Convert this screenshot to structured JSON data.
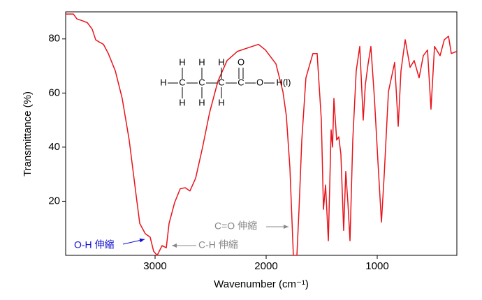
{
  "chart_data": {
    "type": "line",
    "xlabel": "Wavenumber (cm⁻¹)",
    "ylabel": "Transmittance (%)",
    "x": [
      3805,
      3736,
      3704,
      3654,
      3610,
      3566,
      3535,
      3509,
      3465,
      3421,
      3358,
      3296,
      3233,
      3170,
      3138,
      3088,
      3044,
      3013,
      2981,
      2937,
      2899,
      2874,
      2824,
      2774,
      2730,
      2686,
      2635,
      2572,
      2509,
      2434,
      2352,
      2258,
      2164,
      2069,
      2006,
      1912,
      1849,
      1818,
      1786,
      1755,
      1723,
      1704,
      1679,
      1642,
      1579,
      1541,
      1503,
      1484,
      1465,
      1440,
      1415,
      1402,
      1390,
      1365,
      1346,
      1327,
      1302,
      1283,
      1264,
      1245,
      1220,
      1189,
      1157,
      1126,
      1107,
      1082,
      1057,
      1025,
      994,
      962,
      937,
      899,
      843,
      811,
      786,
      748,
      704,
      667,
      623,
      585,
      547,
      516,
      484,
      434,
      396,
      358,
      333,
      283
    ],
    "series": [
      {
        "color": "#e8141b",
        "values": [
          89.2,
          89.2,
          87.4,
          86.7,
          86,
          83.6,
          79.7,
          79,
          78,
          74.6,
          68.2,
          58,
          42.6,
          22,
          11.8,
          8,
          6.7,
          1.5,
          0,
          3.6,
          2.8,
          11.8,
          19.5,
          24.6,
          25,
          23.8,
          28.5,
          40,
          52.8,
          64.4,
          72,
          75.4,
          76.7,
          78,
          75.9,
          70.8,
          60.5,
          51.5,
          32.3,
          0,
          0,
          17,
          42.6,
          65.6,
          74.6,
          74.6,
          50,
          17,
          26,
          5.4,
          46.4,
          40,
          58,
          42.6,
          43.8,
          37.4,
          9.2,
          31,
          19.5,
          5.4,
          42.6,
          68.2,
          77.2,
          50,
          63,
          70.8,
          77.2,
          58,
          35,
          12.3,
          29.7,
          60.5,
          71.3,
          47.7,
          68.2,
          79.7,
          69.5,
          72,
          65.6,
          73.8,
          75.9,
          54,
          77.2,
          73.8,
          79.7,
          81,
          74.6,
          75.4
        ]
      }
    ],
    "xlim": [
      3805,
      283
    ],
    "ylim": [
      0,
      90
    ],
    "xticks": [
      3000,
      2000,
      1000
    ],
    "yticks": [
      20,
      40,
      60,
      80
    ],
    "annotations": [
      {
        "text": "O-H 伸縮",
        "color": "#1010d0"
      },
      {
        "text": "C-H 伸縮",
        "color": "#888888"
      },
      {
        "text": "C=O 伸縮",
        "color": "#888888"
      }
    ],
    "structure": {
      "atoms": [
        "H",
        "C",
        "C",
        "C",
        "C",
        "O",
        "H(l)",
        "H",
        "H",
        "H",
        "H",
        "H",
        "H",
        "O"
      ]
    }
  }
}
